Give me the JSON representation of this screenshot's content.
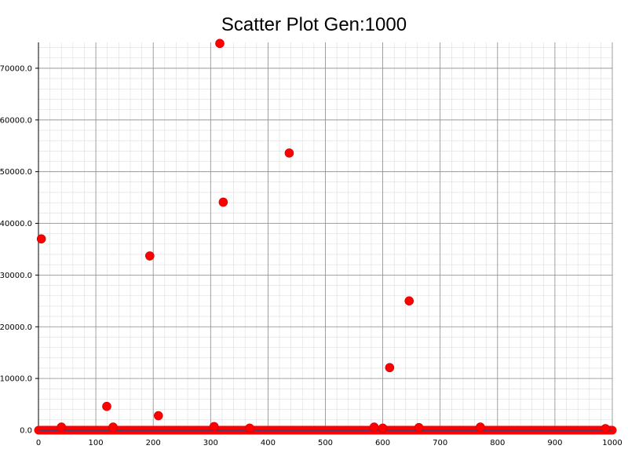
{
  "chart_data": {
    "type": "scatter",
    "title": "Scatter Plot Gen:1000",
    "xlabel": "",
    "ylabel": "",
    "xlim": [
      0,
      1000
    ],
    "ylim": [
      0,
      75000
    ],
    "grid": true,
    "x_ticks": [
      0,
      100,
      200,
      300,
      400,
      500,
      600,
      700,
      800,
      900,
      1000
    ],
    "x_tick_labels": [
      "0",
      "100",
      "200",
      "300",
      "400",
      "500",
      "600",
      "700",
      "800",
      "900",
      "1000"
    ],
    "y_ticks": [
      0,
      10000,
      20000,
      30000,
      40000,
      50000,
      60000,
      70000
    ],
    "y_tick_labels": [
      "0.0",
      "10000.0",
      "20000.0",
      "30000.0",
      "40000.0",
      "50000.0",
      "60000.0",
      "70000.0"
    ],
    "point_color": "#ff0000",
    "baseline_line_color": "#1f4e8c",
    "points": [
      {
        "x": 5,
        "y": 37000
      },
      {
        "x": 40,
        "y": 600
      },
      {
        "x": 119,
        "y": 4600
      },
      {
        "x": 130,
        "y": 600
      },
      {
        "x": 194,
        "y": 33700
      },
      {
        "x": 209,
        "y": 2800
      },
      {
        "x": 306,
        "y": 700
      },
      {
        "x": 316,
        "y": 74800
      },
      {
        "x": 322,
        "y": 44100
      },
      {
        "x": 368,
        "y": 400
      },
      {
        "x": 437,
        "y": 53600
      },
      {
        "x": 585,
        "y": 600
      },
      {
        "x": 600,
        "y": 400
      },
      {
        "x": 612,
        "y": 12100
      },
      {
        "x": 646,
        "y": 25000
      },
      {
        "x": 663,
        "y": 500
      },
      {
        "x": 770,
        "y": 600
      },
      {
        "x": 988,
        "y": 300
      }
    ],
    "baseline_points_note": "",
    "baseline_x_range": [
      0,
      1000
    ],
    "baseline_y": 0
  }
}
